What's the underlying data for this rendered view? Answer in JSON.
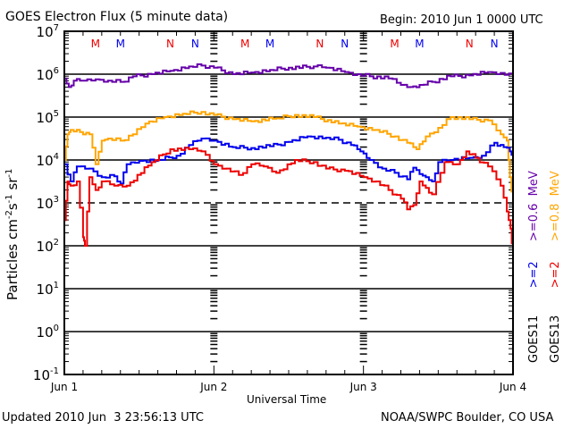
{
  "chart_data": {
    "type": "line",
    "title": "GOES Electron Flux (5 minute data)",
    "begin_label": "Begin: 2010 Jun 1 0000 UTC",
    "xlabel": "Universal Time",
    "ylabel_parts": {
      "base": "Particles cm",
      "exp1": "-2",
      "mid1": "s",
      "exp2": "-1",
      "mid2": "sr",
      "exp3": "-1"
    },
    "x_unit": "hours since 2010 Jun 1 0000 UTC",
    "xlim": [
      0,
      72
    ],
    "x_ticks": [
      {
        "value": 0,
        "label": "Jun 1"
      },
      {
        "value": 24,
        "label": "Jun 2"
      },
      {
        "value": 48,
        "label": "Jun 3"
      },
      {
        "value": 72,
        "label": "Jun 4"
      }
    ],
    "y_scale": "log",
    "ylim": [
      0.1,
      10000000
    ],
    "y_ticks": [
      {
        "exp": 7,
        "label_base": "10",
        "label_exp": "7"
      },
      {
        "exp": 6,
        "label_base": "10",
        "label_exp": "6"
      },
      {
        "exp": 5,
        "label_base": "10",
        "label_exp": "5"
      },
      {
        "exp": 4,
        "label_base": "10",
        "label_exp": "4"
      },
      {
        "exp": 3,
        "label_base": "10",
        "label_exp": "3"
      },
      {
        "exp": 2,
        "label_base": "10",
        "label_exp": "2"
      },
      {
        "exp": 1,
        "label_base": "10",
        "label_exp": "1"
      },
      {
        "exp": 0,
        "label_base": "10",
        "label_exp": "0"
      },
      {
        "exp": -1,
        "label_base": "10",
        "label_exp": "-1"
      }
    ],
    "grid": {
      "solid_decades": [
        6,
        5,
        4,
        2,
        1,
        0
      ],
      "dashed_decades": [
        3
      ]
    },
    "markers": [
      {
        "hour": 5,
        "label": "M",
        "color": "#ee0000"
      },
      {
        "hour": 9,
        "label": "M",
        "color": "#0000ee"
      },
      {
        "hour": 17,
        "label": "N",
        "color": "#ee0000"
      },
      {
        "hour": 21,
        "label": "N",
        "color": "#0000ee"
      },
      {
        "hour": 29,
        "label": "M",
        "color": "#ee0000"
      },
      {
        "hour": 33,
        "label": "M",
        "color": "#0000ee"
      },
      {
        "hour": 41,
        "label": "N",
        "color": "#ee0000"
      },
      {
        "hour": 45,
        "label": "N",
        "color": "#0000ee"
      },
      {
        "hour": 53,
        "label": "M",
        "color": "#ee0000"
      },
      {
        "hour": 57,
        "label": "M",
        "color": "#0000ee"
      },
      {
        "hour": 65,
        "label": "N",
        "color": "#ee0000"
      },
      {
        "hour": 69,
        "label": "N",
        "color": "#0000ee"
      }
    ],
    "legend": {
      "placement": "right-vertical",
      "satellites": [
        "GOES11",
        "GOES13"
      ],
      "entries": [
        {
          "satellite": "GOES11",
          "label": ">=2",
          "color": "#0000ee"
        },
        {
          "satellite": "GOES11",
          "label": ">=0.6  MeV",
          "color": "#6600aa"
        },
        {
          "satellite": "GOES13",
          "label": ">=2",
          "color": "#ee0000"
        },
        {
          "satellite": "GOES13",
          "label": ">=0.8  MeV",
          "color": "#ffa500"
        }
      ]
    },
    "series": [
      {
        "name": "GOES11 >=0.6 MeV",
        "color": "#6600aa",
        "x": [
          0,
          0.7,
          1.5,
          3,
          5,
          7,
          9,
          11,
          14,
          17,
          20,
          22,
          24,
          27,
          30,
          33,
          36,
          40,
          42,
          45,
          47,
          49,
          52,
          54,
          55.5,
          57,
          59,
          62,
          65,
          68,
          70,
          72
        ],
        "log_y": [
          5.9,
          5.7,
          5.85,
          5.85,
          5.88,
          5.85,
          5.82,
          5.95,
          6.0,
          6.08,
          6.18,
          6.2,
          6.15,
          6.0,
          6.04,
          6.1,
          6.15,
          6.18,
          6.15,
          6.05,
          6.0,
          5.95,
          5.9,
          5.75,
          5.7,
          5.75,
          5.82,
          5.95,
          5.97,
          6.05,
          6.03,
          5.95
        ]
      },
      {
        "name": "GOES13 >=0.8 MeV",
        "color": "#ffa500",
        "x": [
          0,
          0.5,
          1,
          2.5,
          4,
          5,
          6,
          7,
          9,
          11,
          13,
          16,
          19,
          22,
          24,
          27,
          30,
          34,
          37,
          40,
          44,
          47,
          50,
          53,
          55,
          56.5,
          58,
          60,
          62,
          65,
          68,
          70,
          71,
          71.5,
          72
        ],
        "log_y": [
          4.0,
          4.6,
          4.7,
          4.65,
          4.6,
          3.9,
          4.45,
          4.5,
          4.45,
          4.6,
          4.85,
          5.0,
          5.08,
          5.12,
          5.05,
          4.95,
          4.9,
          4.97,
          5.05,
          5.0,
          4.85,
          4.78,
          4.7,
          4.55,
          4.4,
          4.25,
          4.55,
          4.75,
          5.0,
          4.95,
          4.92,
          4.6,
          4.45,
          3.6,
          3.0
        ]
      },
      {
        "name": "GOES11 >=2 MeV",
        "color": "#0000ee",
        "x": [
          0,
          1,
          2,
          4,
          6,
          8,
          9,
          10,
          12,
          15,
          18,
          20,
          22,
          24,
          27,
          30,
          33,
          36,
          39,
          42,
          44,
          46,
          47.5,
          49,
          51,
          53,
          55,
          56,
          57,
          58,
          59,
          60,
          62,
          65,
          67,
          69,
          70.5,
          71.5,
          72
        ],
        "log_y": [
          3.9,
          3.5,
          3.85,
          3.8,
          3.6,
          3.62,
          3.45,
          3.9,
          3.98,
          4.0,
          4.1,
          4.35,
          4.5,
          4.45,
          4.3,
          4.28,
          4.32,
          4.42,
          4.55,
          4.52,
          4.47,
          4.35,
          4.2,
          4.0,
          3.8,
          3.7,
          3.55,
          3.82,
          3.67,
          3.6,
          3.5,
          3.95,
          4.0,
          4.05,
          4.1,
          4.4,
          4.3,
          4.2,
          4.0
        ]
      },
      {
        "name": "GOES13 >=2 MeV",
        "color": "#ee0000",
        "x": [
          0,
          0.5,
          1,
          2,
          3,
          3.3,
          4,
          5,
          6,
          8,
          10,
          14,
          17,
          20,
          22,
          24,
          26,
          28,
          30,
          32,
          34,
          37,
          40,
          42,
          45,
          48,
          50,
          52,
          54,
          55,
          56,
          57,
          58,
          59,
          61,
          63,
          64.5,
          66,
          68,
          70,
          71,
          71.6,
          72
        ],
        "log_y": [
          2.6,
          3.5,
          3.4,
          3.5,
          2.2,
          2.0,
          3.6,
          3.3,
          3.5,
          3.4,
          3.4,
          3.95,
          4.25,
          4.25,
          4.2,
          3.9,
          3.8,
          3.65,
          3.9,
          3.85,
          3.7,
          4.0,
          3.95,
          3.8,
          3.75,
          3.6,
          3.5,
          3.3,
          3.1,
          2.85,
          2.95,
          3.5,
          3.35,
          3.2,
          3.95,
          3.9,
          4.2,
          4.05,
          3.85,
          3.4,
          2.8,
          2.4,
          1.75
        ]
      }
    ]
  },
  "footer": {
    "updated": "Updated 2010 Jun  3 23:56:13 UTC",
    "credit": "NOAA/SWPC Boulder, CO USA"
  }
}
